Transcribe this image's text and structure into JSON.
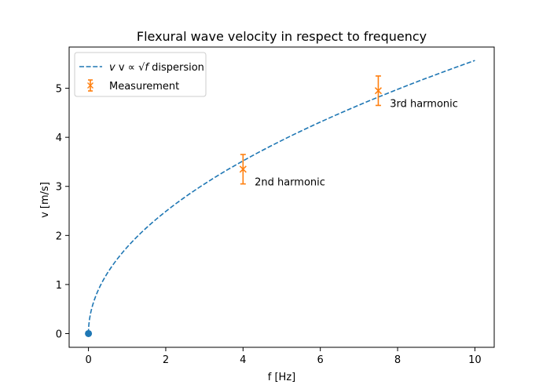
{
  "chart_data": {
    "type": "line",
    "title": "Flexural wave velocity in respect to frequency",
    "xlabel": "f [Hz]",
    "ylabel": "v [m/s]",
    "xlim": [
      -0.5,
      10.5
    ],
    "ylim": [
      -0.28,
      5.84
    ],
    "xticks": [
      0,
      2,
      4,
      6,
      8,
      10
    ],
    "yticks": [
      0,
      1,
      2,
      3,
      4,
      5
    ],
    "grid": false,
    "legend_position": "upper-left",
    "series": [
      {
        "name_prefix": "v ∝ √",
        "name_var": "f",
        "name_suffix": " dispersion",
        "style": "dashed",
        "color": "#1f77b4",
        "model": "v = 1.76·√f",
        "coefficient": 1.76,
        "x_range": [
          0,
          10
        ]
      },
      {
        "name": "Measurement",
        "style": "errorbar",
        "marker": "x",
        "color": "#ff7f0e",
        "points": [
          {
            "x": 4,
            "y": 3.35,
            "yerr": 0.3
          },
          {
            "x": 7.5,
            "y": 4.95,
            "yerr": 0.3
          }
        ]
      }
    ],
    "origin_point": {
      "x": 0,
      "y": 0,
      "color": "#1f77b4"
    },
    "annotations": [
      {
        "text": "2nd harmonic",
        "x": 4.3,
        "y": 3.1
      },
      {
        "text": "3rd harmonic",
        "x": 7.8,
        "y": 4.7
      }
    ]
  }
}
